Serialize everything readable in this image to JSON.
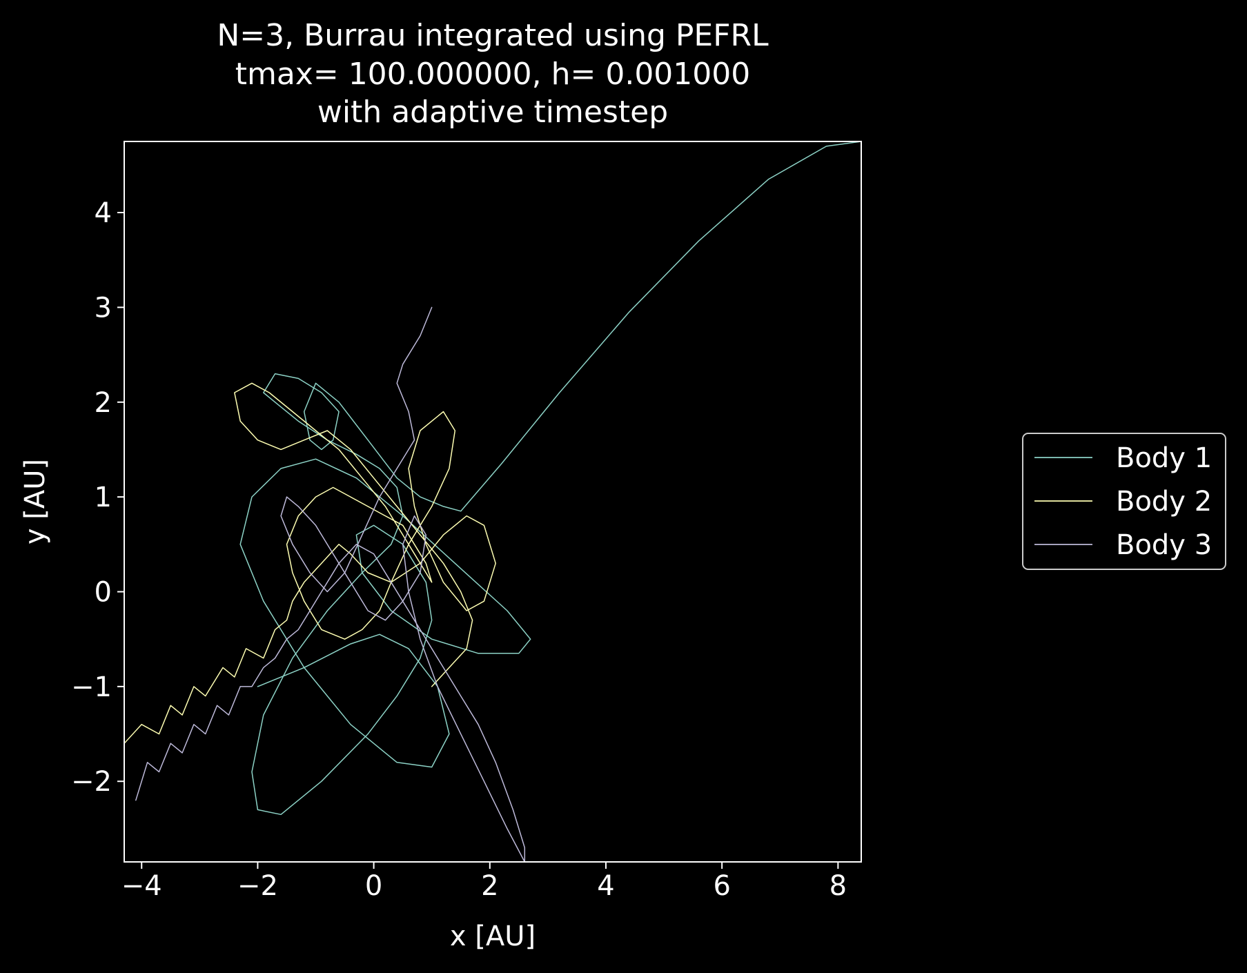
{
  "chart_data": {
    "type": "line",
    "title_lines": [
      "N=3, Burrau integrated using PEFRL",
      "tmax= 100.000000, h= 0.001000",
      "with adaptive timestep"
    ],
    "xlabel": "x [AU]",
    "ylabel": "y [AU]",
    "xlim": [
      -4.3,
      8.4
    ],
    "ylim": [
      -2.85,
      4.75
    ],
    "xticks": [
      -4,
      -2,
      0,
      2,
      4,
      6,
      8
    ],
    "xtick_labels": [
      "−4",
      "−2",
      "0",
      "2",
      "4",
      "6",
      "8"
    ],
    "yticks": [
      -2,
      -1,
      0,
      1,
      2,
      3,
      4
    ],
    "ytick_labels": [
      "−2",
      "−1",
      "0",
      "1",
      "2",
      "3",
      "4"
    ],
    "grid": false,
    "legend_placement": "outside-right",
    "background": "#000000",
    "axes_color": "#ffffff",
    "series": [
      {
        "name": "Body 1",
        "color": "#8dd3c7",
        "x": [
          -2.0,
          -1.2,
          -0.4,
          0.1,
          0.6,
          1.1,
          1.3,
          1.0,
          0.4,
          -0.4,
          -1.2,
          -1.9,
          -2.3,
          -2.1,
          -1.6,
          -1.0,
          -0.3,
          0.5,
          1.4,
          2.3,
          2.7,
          2.5,
          1.8,
          1.0,
          0.3,
          -0.2,
          -0.3,
          0.0,
          0.5,
          0.9,
          1.0,
          0.8,
          0.4,
          -0.1,
          -0.9,
          -1.6,
          -2.0,
          -2.1,
          -1.9,
          -1.4,
          -0.8,
          -0.2,
          0.3,
          0.5,
          0.4,
          0.1,
          -0.3,
          -0.8,
          -1.3,
          -1.7,
          -1.9,
          -1.7,
          -1.3,
          -0.9,
          -0.6,
          -0.7,
          -0.9,
          -1.1,
          -1.2,
          -1.0,
          -0.6,
          -0.1,
          0.4,
          0.8,
          1.2,
          1.5,
          2.2,
          3.2,
          4.4,
          5.6,
          6.8,
          7.8,
          8.4
        ],
        "y": [
          -1.0,
          -0.8,
          -0.55,
          -0.45,
          -0.6,
          -1.0,
          -1.5,
          -1.85,
          -1.8,
          -1.4,
          -0.8,
          -0.1,
          0.5,
          1.0,
          1.3,
          1.4,
          1.2,
          0.8,
          0.3,
          -0.2,
          -0.5,
          -0.65,
          -0.65,
          -0.5,
          -0.2,
          0.2,
          0.6,
          0.7,
          0.5,
          0.1,
          -0.3,
          -0.7,
          -1.1,
          -1.5,
          -2.0,
          -2.35,
          -2.3,
          -1.9,
          -1.3,
          -0.7,
          -0.2,
          0.2,
          0.5,
          0.8,
          1.1,
          1.3,
          1.45,
          1.6,
          1.8,
          2.0,
          2.1,
          2.3,
          2.25,
          2.1,
          1.9,
          1.6,
          1.5,
          1.6,
          1.9,
          2.2,
          2.0,
          1.6,
          1.2,
          1.0,
          0.9,
          0.85,
          1.35,
          2.1,
          2.95,
          3.7,
          4.35,
          4.7,
          4.75
        ]
      },
      {
        "name": "Body 2",
        "color": "#ffffb3",
        "x": [
          -4.3,
          -4.0,
          -3.7,
          -3.5,
          -3.3,
          -3.1,
          -2.9,
          -2.6,
          -2.4,
          -2.2,
          -1.9,
          -1.7,
          -1.5,
          -1.4,
          -1.2,
          -0.9,
          -0.6,
          -0.4,
          -0.1,
          0.3,
          0.8,
          1.2,
          1.6,
          1.9,
          2.1,
          1.9,
          1.6,
          1.2,
          0.9,
          0.7,
          0.6,
          0.8,
          1.2,
          1.4,
          1.3,
          1.0,
          0.6,
          0.3,
          0.1,
          -0.2,
          -0.5,
          -0.9,
          -1.2,
          -1.4,
          -1.5,
          -1.3,
          -1.0,
          -0.7,
          -0.4,
          -0.1,
          0.2,
          0.5,
          0.7,
          0.9,
          1.0,
          0.8,
          0.5,
          0.2,
          -0.2,
          -0.6,
          -1.0,
          -1.4,
          -1.8,
          -2.1,
          -2.4,
          -2.3,
          -2.0,
          -1.6,
          -1.2,
          -0.8,
          -0.4,
          0.0,
          0.4,
          0.8,
          1.2,
          1.5,
          1.7,
          1.6,
          1.3,
          1.0
        ],
        "y": [
          -1.6,
          -1.4,
          -1.5,
          -1.2,
          -1.3,
          -1.0,
          -1.1,
          -0.8,
          -0.9,
          -0.6,
          -0.7,
          -0.4,
          -0.3,
          -0.1,
          0.1,
          0.3,
          0.5,
          0.4,
          0.2,
          0.1,
          0.3,
          0.6,
          0.8,
          0.7,
          0.3,
          -0.1,
          -0.2,
          0.1,
          0.5,
          0.9,
          1.3,
          1.7,
          1.9,
          1.7,
          1.3,
          0.9,
          0.5,
          0.1,
          -0.2,
          -0.4,
          -0.5,
          -0.4,
          -0.1,
          0.2,
          0.5,
          0.8,
          1.0,
          1.1,
          1.0,
          0.9,
          0.8,
          0.7,
          0.5,
          0.3,
          0.1,
          0.3,
          0.6,
          0.9,
          1.2,
          1.5,
          1.7,
          1.9,
          2.1,
          2.2,
          2.1,
          1.8,
          1.6,
          1.5,
          1.6,
          1.7,
          1.5,
          1.2,
          0.9,
          0.6,
          0.3,
          0.0,
          -0.3,
          -0.6,
          -0.8,
          -1.0
        ]
      },
      {
        "name": "Body 3",
        "color": "#bebada",
        "x": [
          -4.1,
          -3.9,
          -3.7,
          -3.5,
          -3.3,
          -3.1,
          -2.9,
          -2.7,
          -2.5,
          -2.3,
          -2.1,
          -1.9,
          -1.7,
          -1.5,
          -1.3,
          -1.1,
          -0.9,
          -0.6,
          -0.3,
          0.0,
          0.3,
          0.6,
          0.9,
          1.2,
          1.5,
          1.8,
          2.1,
          2.4,
          2.6,
          2.6,
          2.3,
          1.9,
          1.5,
          1.1,
          0.8,
          0.6,
          0.5,
          0.7,
          0.9,
          0.8,
          0.5,
          0.2,
          -0.1,
          -0.4,
          -0.7,
          -1.0,
          -1.3,
          -1.5,
          -1.6,
          -1.4,
          -1.1,
          -0.8,
          -0.5,
          -0.2,
          0.1,
          0.4,
          0.6,
          0.7,
          0.6,
          0.4,
          0.5,
          0.8,
          1.0
        ],
        "y": [
          -2.2,
          -1.8,
          -1.9,
          -1.6,
          -1.7,
          -1.4,
          -1.5,
          -1.2,
          -1.3,
          -1.0,
          -1.0,
          -0.8,
          -0.7,
          -0.5,
          -0.4,
          -0.2,
          0.0,
          0.3,
          0.5,
          0.4,
          0.1,
          -0.2,
          -0.5,
          -0.8,
          -1.1,
          -1.4,
          -1.8,
          -2.3,
          -2.7,
          -2.85,
          -2.5,
          -2.0,
          -1.5,
          -1.0,
          -0.5,
          0.0,
          0.5,
          0.8,
          0.6,
          0.2,
          -0.1,
          -0.3,
          -0.2,
          0.1,
          0.4,
          0.7,
          0.9,
          1.0,
          0.8,
          0.5,
          0.2,
          0.0,
          0.2,
          0.6,
          1.0,
          1.3,
          1.5,
          1.6,
          1.9,
          2.2,
          2.4,
          2.7,
          3.0
        ]
      }
    ]
  }
}
